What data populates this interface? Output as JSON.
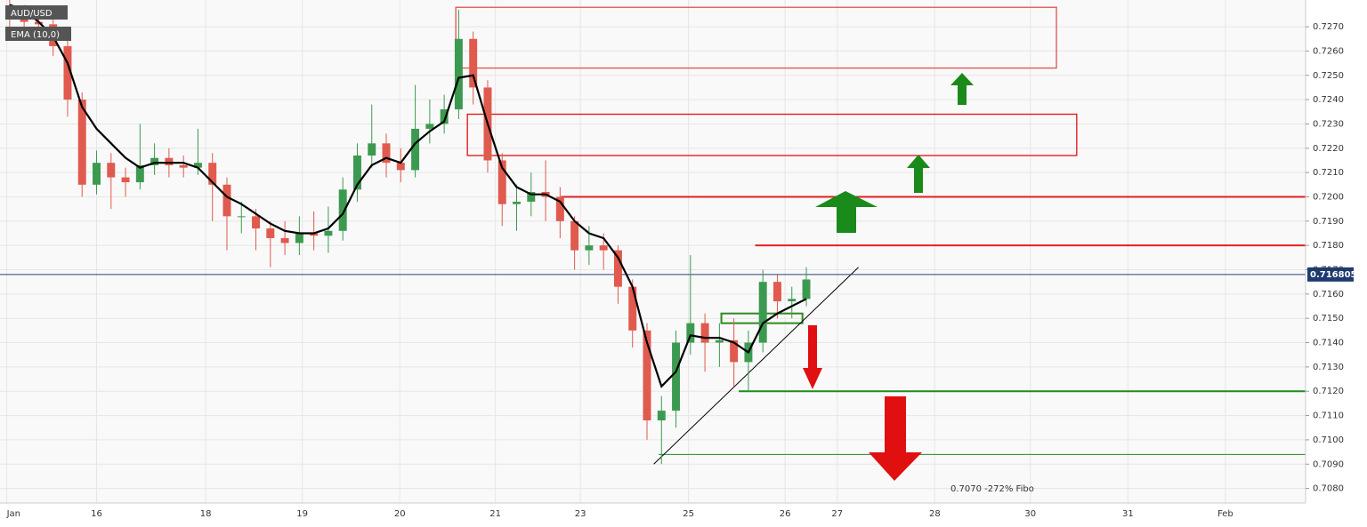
{
  "chart_data": {
    "type": "candlestick",
    "legend": [
      "AUD/USD",
      "EMA (10,0)"
    ],
    "x": [
      0.1,
      0.25,
      0.4,
      0.55,
      0.7,
      0.85,
      1.0,
      1.15,
      1.3,
      1.45,
      1.6,
      1.75,
      1.9,
      2.05,
      2.2,
      2.35,
      2.5,
      2.65,
      2.8,
      2.95,
      3.1,
      3.25,
      3.4,
      3.55,
      3.7,
      3.85,
      4.0,
      4.15,
      4.3,
      4.45,
      4.6,
      4.75,
      4.9,
      5.05,
      5.2,
      5.35,
      5.5,
      5.65,
      5.8,
      5.95,
      6.1,
      6.25,
      6.4,
      6.55,
      6.7,
      6.85,
      7.0,
      7.15,
      7.3,
      7.45,
      7.6,
      7.75,
      7.9,
      8.05,
      8.2,
      8.35
    ],
    "open": [
      0.7276,
      0.7274,
      0.7272,
      0.7271,
      0.7262,
      0.724,
      0.7205,
      0.7214,
      0.7208,
      0.7206,
      0.7213,
      0.7216,
      0.7213,
      0.7212,
      0.7214,
      0.7205,
      0.7192,
      0.7192,
      0.7187,
      0.7183,
      0.7181,
      0.7185,
      0.7184,
      0.7186,
      0.7203,
      0.7217,
      0.7222,
      0.7214,
      0.7211,
      0.7228,
      0.723,
      0.7236,
      0.7265,
      0.7245,
      0.7215,
      0.7197,
      0.7198,
      0.7202,
      0.72,
      0.719,
      0.7178,
      0.718,
      0.7178,
      0.7163,
      0.7145,
      0.7108,
      0.7112,
      0.714,
      0.7148,
      0.714,
      0.7141,
      0.7132,
      0.714,
      0.7165,
      0.7157,
      0.7158
    ],
    "high": [
      0.7281,
      0.7279,
      0.7276,
      0.7274,
      0.7265,
      0.7243,
      0.7219,
      0.7218,
      0.7212,
      0.723,
      0.7222,
      0.722,
      0.7217,
      0.7228,
      0.7218,
      0.7208,
      0.7198,
      0.7195,
      0.719,
      0.719,
      0.7192,
      0.7194,
      0.7196,
      0.7208,
      0.7222,
      0.7238,
      0.7226,
      0.722,
      0.7246,
      0.724,
      0.7242,
      0.7277,
      0.7268,
      0.7248,
      0.7218,
      0.7205,
      0.721,
      0.7215,
      0.7204,
      0.7192,
      0.7188,
      0.7185,
      0.718,
      0.7166,
      0.7148,
      0.7118,
      0.7145,
      0.7176,
      0.7152,
      0.7148,
      0.715,
      0.7145,
      0.717,
      0.7168,
      0.7163,
      0.7171
    ],
    "low": [
      0.727,
      0.7268,
      0.7266,
      0.7258,
      0.7233,
      0.72,
      0.7201,
      0.7195,
      0.72,
      0.7203,
      0.7209,
      0.7208,
      0.7208,
      0.7209,
      0.719,
      0.7178,
      0.7185,
      0.7178,
      0.7171,
      0.7176,
      0.7176,
      0.7178,
      0.7177,
      0.7182,
      0.7198,
      0.7212,
      0.7208,
      0.7206,
      0.7208,
      0.7222,
      0.7226,
      0.7232,
      0.7238,
      0.721,
      0.7188,
      0.7186,
      0.7192,
      0.719,
      0.7183,
      0.717,
      0.7172,
      0.717,
      0.7156,
      0.7138,
      0.71,
      0.709,
      0.7105,
      0.7135,
      0.7128,
      0.713,
      0.7122,
      0.712,
      0.7136,
      0.715,
      0.715,
      0.7155
    ],
    "close": [
      0.7274,
      0.7272,
      0.7271,
      0.7262,
      0.724,
      0.7205,
      0.7214,
      0.7208,
      0.7206,
      0.7213,
      0.7216,
      0.7213,
      0.7212,
      0.7214,
      0.7205,
      0.7192,
      0.7192,
      0.7187,
      0.7183,
      0.7181,
      0.7185,
      0.7184,
      0.7186,
      0.7203,
      0.7217,
      0.7222,
      0.7214,
      0.7211,
      0.7228,
      0.723,
      0.7236,
      0.7265,
      0.7245,
      0.7215,
      0.7197,
      0.7198,
      0.7202,
      0.72,
      0.719,
      0.7178,
      0.718,
      0.7178,
      0.7163,
      0.7145,
      0.7108,
      0.7112,
      0.714,
      0.7148,
      0.714,
      0.7141,
      0.7132,
      0.714,
      0.7165,
      0.7157,
      0.7158,
      0.7166
    ],
    "ema": [
      0.7279,
      0.7277,
      0.7272,
      0.7266,
      0.7255,
      0.7237,
      0.7228,
      0.7222,
      0.7216,
      0.7212,
      0.7214,
      0.7214,
      0.7214,
      0.7212,
      0.7206,
      0.72,
      0.7197,
      0.7193,
      0.7189,
      0.7186,
      0.7185,
      0.7185,
      0.7187,
      0.7193,
      0.7205,
      0.7213,
      0.7216,
      0.7214,
      0.7222,
      0.7227,
      0.7231,
      0.7249,
      0.725,
      0.723,
      0.7212,
      0.7204,
      0.7201,
      0.7201,
      0.7198,
      0.719,
      0.7185,
      0.7183,
      0.7175,
      0.7163,
      0.714,
      0.7122,
      0.7128,
      0.7143,
      0.7142,
      0.7142,
      0.714,
      0.7136,
      0.7148,
      0.7152,
      0.7155,
      0.7158
    ],
    "up_color": "#3c9a50",
    "down_color": "#e05a4e",
    "ema_color": "#000000",
    "xlim": [
      0,
      13.52
    ],
    "ylim": [
      0.7074,
      0.7281
    ],
    "xticks": [
      {
        "value": 0.07,
        "label": "Jan"
      },
      {
        "value": 1.0,
        "label": "16"
      },
      {
        "value": 2.13,
        "label": "18"
      },
      {
        "value": 3.13,
        "label": "19"
      },
      {
        "value": 4.14,
        "label": "20"
      },
      {
        "value": 5.13,
        "label": "21"
      },
      {
        "value": 6.01,
        "label": "23"
      },
      {
        "value": 7.13,
        "label": "25"
      },
      {
        "value": 8.13,
        "label": "26"
      },
      {
        "value": 8.67,
        "label": "27"
      },
      {
        "value": 9.68,
        "label": "28"
      },
      {
        "value": 10.67,
        "label": "30"
      },
      {
        "value": 11.68,
        "label": "31"
      },
      {
        "value": 12.69,
        "label": "Feb"
      }
    ],
    "yticks": [
      {
        "value": 0.708,
        "label": "0.7080"
      },
      {
        "value": 0.709,
        "label": "0.7090"
      },
      {
        "value": 0.71,
        "label": "0.7100"
      },
      {
        "value": 0.711,
        "label": "0.7110"
      },
      {
        "value": 0.712,
        "label": "0.7120"
      },
      {
        "value": 0.713,
        "label": "0.7130"
      },
      {
        "value": 0.714,
        "label": "0.7140"
      },
      {
        "value": 0.715,
        "label": "0.7150"
      },
      {
        "value": 0.716,
        "label": "0.7160"
      },
      {
        "value": 0.717,
        "label": "0.7170"
      },
      {
        "value": 0.718,
        "label": "0.7180"
      },
      {
        "value": 0.719,
        "label": "0.7190"
      },
      {
        "value": 0.72,
        "label": "0.7200"
      },
      {
        "value": 0.721,
        "label": "0.7210"
      },
      {
        "value": 0.722,
        "label": "0.7220"
      },
      {
        "value": 0.723,
        "label": "0.7230"
      },
      {
        "value": 0.724,
        "label": "0.7240"
      },
      {
        "value": 0.725,
        "label": "0.7250"
      },
      {
        "value": 0.726,
        "label": "0.7260"
      },
      {
        "value": 0.727,
        "label": "0.7270"
      }
    ],
    "grid": true,
    "last_price": 0.716805,
    "levels": [
      {
        "value": 0.72,
        "x_start": 5.81,
        "color": "#e02020"
      },
      {
        "value": 0.718,
        "x_start": 7.82,
        "color": "#e02020"
      },
      {
        "value": 0.712,
        "x_start": 7.65,
        "color": "#1f8a1f"
      },
      {
        "value": 0.7094,
        "x_start": 6.82,
        "color": "#1f8a1f"
      }
    ],
    "zones": [
      {
        "low": 0.7253,
        "high": 0.7278,
        "x_start": 4.72,
        "x_end": 10.94,
        "color": "#e05050"
      },
      {
        "low": 0.7217,
        "high": 0.7234,
        "x_start": 4.84,
        "x_end": 11.15,
        "color": "#e01010"
      },
      {
        "low": 0.7148,
        "high": 0.7152,
        "x_start": 7.47,
        "x_end": 8.31,
        "color": "#2e8b1e"
      }
    ],
    "trendline": {
      "x": [
        6.77,
        8.89
      ],
      "y": [
        0.709,
        0.7171
      ]
    },
    "annotation": "0.7070 -272% Fibo"
  }
}
